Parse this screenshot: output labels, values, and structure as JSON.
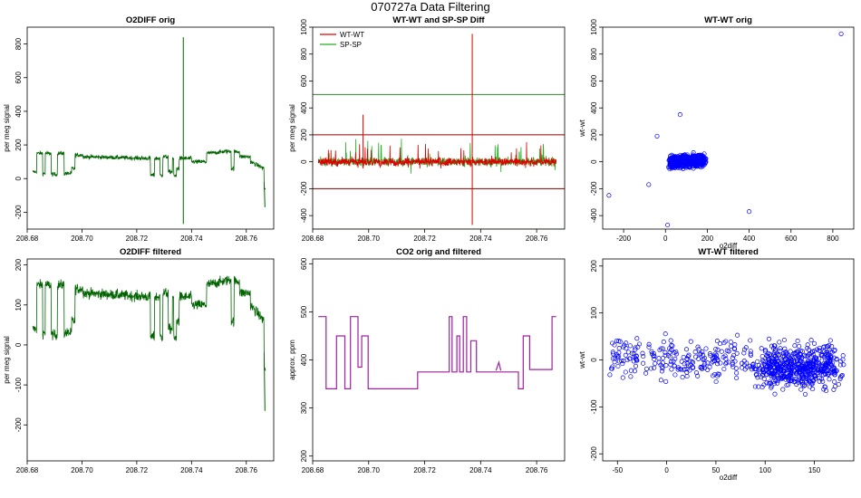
{
  "figure": {
    "title": "070727a   Data Filtering",
    "colors": {
      "green": "#006400",
      "red": "#e00000",
      "lightgreen": "#20b020",
      "purple": "#a020a0",
      "blue": "#0000ff",
      "darkred": "#8b0000",
      "hline_green": "#2e8b2e"
    }
  },
  "chart_data": [
    {
      "id": "o2diff-orig",
      "type": "line",
      "title": "O2DIFF orig",
      "xlabel": "",
      "ylabel": "per meg signal",
      "xlim": [
        208.68,
        208.77
      ],
      "ylim": [
        -300,
        900
      ],
      "xticks": [
        208.68,
        208.7,
        208.72,
        208.74,
        208.76
      ],
      "xtick_labels": [
        "208.68",
        "208.70",
        "208.72",
        "208.74",
        "208.76"
      ],
      "yticks": [
        -200,
        0,
        200,
        400,
        600,
        800
      ],
      "ytick_labels": [
        "-200",
        "0",
        "200",
        "400",
        "600",
        "800"
      ],
      "series": [
        {
          "name": "O2DIFF",
          "color": "#006400"
        }
      ],
      "spike": {
        "x": 208.737,
        "max": 840,
        "min": -270
      }
    },
    {
      "id": "wt-sp-diff",
      "type": "line",
      "title": "WT-WT and SP-SP Diff",
      "xlabel": "",
      "ylabel": "per meg signal",
      "xlim": [
        208.68,
        208.77
      ],
      "ylim": [
        -500,
        1000
      ],
      "xticks": [
        208.68,
        208.7,
        208.72,
        208.74,
        208.76
      ],
      "xtick_labels": [
        "208.68",
        "208.70",
        "208.72",
        "208.74",
        "208.76"
      ],
      "yticks": [
        -400,
        -200,
        0,
        200,
        400,
        600,
        800,
        1000
      ],
      "ytick_labels": [
        "-400",
        "-200",
        "0",
        "200",
        "400",
        "600",
        "800",
        "1000"
      ],
      "legend": [
        {
          "name": "WT-WT",
          "color": "#e00000"
        },
        {
          "name": "SP-SP",
          "color": "#20b020"
        }
      ],
      "hlines": [
        {
          "y": 500,
          "color": "#2e8b2e"
        },
        {
          "y": -500,
          "color": "#2e8b2e"
        },
        {
          "y": 200,
          "color": "#8b0000"
        },
        {
          "y": -200,
          "color": "#8b0000"
        }
      ],
      "spikes": [
        {
          "x": 208.698,
          "max": 350,
          "min": -50
        },
        {
          "x": 208.737,
          "max": 950,
          "min": -470
        }
      ]
    },
    {
      "id": "wt-orig-scatter",
      "type": "scatter",
      "title": "WT-WT orig",
      "xlabel": "o2diff",
      "ylabel": "wt-wt",
      "xlim": [
        -300,
        900
      ],
      "ylim": [
        -500,
        1000
      ],
      "xticks": [
        -200,
        0,
        200,
        400,
        600,
        800
      ],
      "xtick_labels": [
        "-200",
        "0",
        "200",
        "400",
        "600",
        "800"
      ],
      "yticks": [
        -400,
        -200,
        0,
        200,
        400,
        600,
        800,
        1000
      ],
      "ytick_labels": [
        "-400",
        "-200",
        "0",
        "200",
        "400",
        "600",
        "800",
        "1000"
      ],
      "outliers": [
        [
          840,
          950
        ],
        [
          -270,
          -250
        ],
        [
          400,
          -370
        ],
        [
          10,
          -470
        ],
        [
          70,
          350
        ],
        [
          -40,
          190
        ],
        [
          -80,
          -170
        ]
      ]
    },
    {
      "id": "o2diff-filtered",
      "type": "line",
      "title": "O2DIFF filtered",
      "xlabel": "",
      "ylabel": "per meg signal",
      "xlim": [
        208.68,
        208.77
      ],
      "ylim": [
        -290,
        215
      ],
      "xticks": [
        208.68,
        208.7,
        208.72,
        208.74,
        208.76
      ],
      "xtick_labels": [
        "208.68",
        "208.70",
        "208.72",
        "208.74",
        "208.76"
      ],
      "yticks": [
        -200,
        -100,
        0,
        100,
        200
      ],
      "ytick_labels": [
        "-200",
        "-100",
        "0",
        "100",
        "200"
      ],
      "series": [
        {
          "name": "O2DIFF filtered",
          "color": "#006400"
        }
      ]
    },
    {
      "id": "co2-orig-filtered",
      "type": "line",
      "title": "CO2 orig and filtered",
      "xlabel": "",
      "ylabel": "approx. ppm",
      "xlim": [
        208.68,
        208.77
      ],
      "ylim": [
        190,
        610
      ],
      "xticks": [
        208.68,
        208.7,
        208.72,
        208.74,
        208.76
      ],
      "xtick_labels": [
        "208.68",
        "208.70",
        "208.72",
        "208.74",
        "208.76"
      ],
      "yticks": [
        200,
        300,
        400,
        500,
        600
      ],
      "ytick_labels": [
        "200",
        "300",
        "400",
        "500",
        "600"
      ],
      "steps": [
        [
          208.682,
          490
        ],
        [
          208.6848,
          340
        ],
        [
          208.6885,
          450
        ],
        [
          208.6915,
          340
        ],
        [
          208.6935,
          490
        ],
        [
          208.6962,
          385
        ],
        [
          208.6975,
          450
        ],
        [
          208.6998,
          340
        ],
        [
          208.7175,
          375
        ],
        [
          208.7288,
          490
        ],
        [
          208.7298,
          375
        ],
        [
          208.7315,
          450
        ],
        [
          208.7325,
          375
        ],
        [
          208.7338,
          490
        ],
        [
          208.735,
          375
        ],
        [
          208.7365,
          440
        ],
        [
          208.7385,
          375
        ],
        [
          208.7462,
          375
        ],
        [
          208.7535,
          340
        ],
        [
          208.7552,
          450
        ],
        [
          208.7575,
          380
        ],
        [
          208.7655,
          490
        ],
        [
          208.767,
          490
        ]
      ],
      "series": [
        {
          "name": "CO2",
          "color": "#a020a0"
        }
      ]
    },
    {
      "id": "wt-filtered-scatter",
      "type": "scatter",
      "title": "WT-WT filtered",
      "xlabel": "o2diff",
      "ylabel": "wt-wt",
      "xlim": [
        -65,
        190
      ],
      "ylim": [
        -215,
        215
      ],
      "xticks": [
        -50,
        0,
        50,
        100,
        150
      ],
      "xtick_labels": [
        "-50",
        "0",
        "50",
        "100",
        "150"
      ],
      "yticks": [
        -200,
        -100,
        0,
        100,
        200
      ],
      "ytick_labels": [
        "-200",
        "-100",
        "0",
        "100",
        "200"
      ]
    }
  ]
}
